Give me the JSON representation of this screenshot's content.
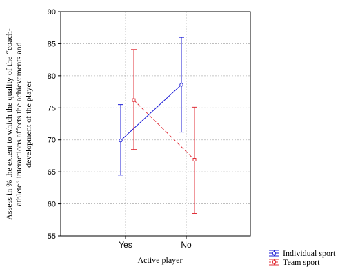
{
  "chart_data": {
    "type": "line",
    "categories": [
      "Yes",
      "No"
    ],
    "xlabel": "Active player",
    "ylabel_lines": [
      "Assess in % the extent to which the quality of the “coach-",
      "athlete” interactions affects the achievements and",
      "development of the player"
    ],
    "ylim": [
      55,
      90
    ],
    "yticks": [
      55,
      60,
      65,
      70,
      75,
      80,
      85,
      90
    ],
    "grid": true,
    "legend_position": "bottom-right",
    "series": [
      {
        "name": "Individual sport",
        "color": "#1c1cd6",
        "line_style": "solid",
        "marker": "circle",
        "values": [
          69.9,
          78.6
        ],
        "lower": [
          64.5,
          71.2
        ],
        "upper": [
          75.5,
          86.0
        ]
      },
      {
        "name": "Team sport",
        "color": "#e0303a",
        "line_style": "dashed",
        "marker": "square",
        "values": [
          76.2,
          66.9
        ],
        "lower": [
          68.5,
          58.5
        ],
        "upper": [
          84.1,
          75.1
        ]
      }
    ]
  }
}
